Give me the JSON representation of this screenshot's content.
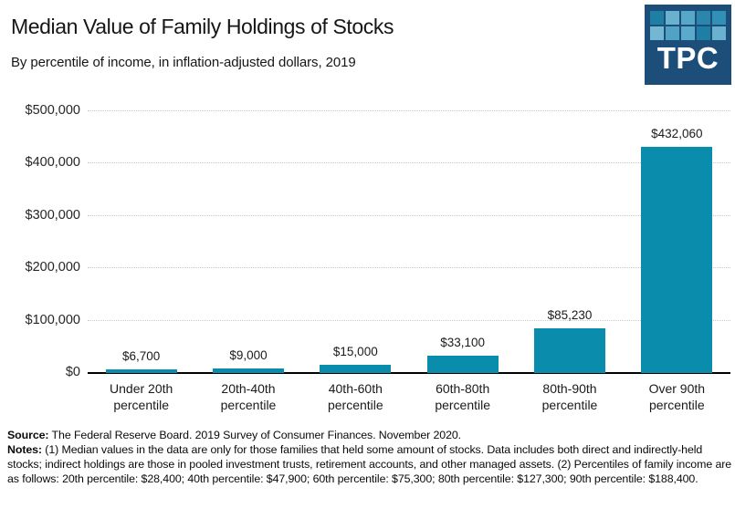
{
  "header": {
    "title": "Median Value of Family Holdings of Stocks",
    "subtitle": "By percentile of income, in inflation-adjusted dollars, 2019"
  },
  "logo": {
    "text": "TPC",
    "background": "#1d4e79",
    "square_colors": [
      "#1e7ea4",
      "#69b1cf",
      "#57a7c9",
      "#2b86ac",
      "#3190b5",
      "#73b7d3",
      "#51a3c6",
      "#5aaacc",
      "#1e7ea4",
      "#69b1cf"
    ]
  },
  "chart_data": {
    "type": "bar",
    "title": "Median Value of Family Holdings of Stocks",
    "subtitle": "By percentile of income, in inflation-adjusted dollars, 2019",
    "categories": [
      "Under 20th percentile",
      "20th-40th percentile",
      "40th-60th percentile",
      "60th-80th percentile",
      "80th-90th percentile",
      "Over 90th percentile"
    ],
    "values": [
      6700,
      9000,
      15000,
      33100,
      85230,
      432060
    ],
    "value_labels": [
      "$6,700",
      "$9,000",
      "$15,000",
      "$33,100",
      "$85,230",
      "$432,060"
    ],
    "xlabel": "",
    "ylabel": "",
    "ylim": [
      0,
      500000
    ],
    "ytick_labels": [
      "$0",
      "$100,000",
      "$200,000",
      "$300,000",
      "$400,000",
      "$500,000"
    ],
    "grid": "horizontal-dotted",
    "legend": "none",
    "bar_color": "#0a8cad"
  },
  "footer": {
    "source_label": "Source:",
    "source_text": " The Federal Reserve Board. 2019 Survey of Consumer Finances. November 2020.",
    "notes_label": "Notes:",
    "notes_text": " (1) Median values in the data are only for those families that held some amount of stocks. Data includes both direct and indirectly-held stocks; indirect holdings are those in pooled investment trusts, retirement accounts, and other managed assets. (2) Percentiles of family income are as follows: 20th percentile: $28,400; 40th percentile: $47,900; 60th percentile: $75,300; 80th percentile: $127,300; 90th percentile: $188,400."
  }
}
